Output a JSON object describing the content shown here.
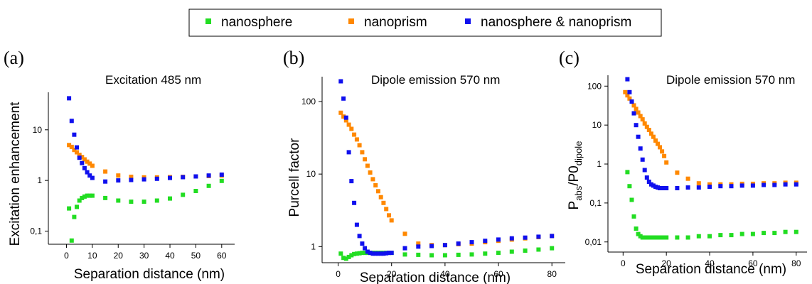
{
  "legend": {
    "entries": [
      {
        "label": "nanosphere",
        "color": "#22dd22"
      },
      {
        "label": "nanoprism",
        "color": "#ff8800"
      },
      {
        "label": "nanosphere & nanoprism",
        "color": "#1010ee"
      }
    ]
  },
  "chart_data": [
    {
      "type": "scatter",
      "panel_label": "(a)",
      "title": "Excitation 485 nm",
      "xlabel": "Separation distance (nm)",
      "ylabel": "Excitation enhancement",
      "y_scale": "log",
      "xlim": [
        -7,
        65
      ],
      "ylim": [
        0.055,
        55
      ],
      "xticks": [
        0,
        10,
        20,
        30,
        40,
        50,
        60
      ],
      "xtick_labels": [
        "0",
        "10",
        "20",
        "30",
        "40",
        "50",
        "60"
      ],
      "yticks": [
        0.1,
        1,
        10
      ],
      "ytick_labels": [
        "0,1",
        "1",
        "10"
      ],
      "grid": false,
      "series": [
        {
          "name": "nanosphere",
          "color": "#22dd22",
          "x": [
            1,
            2,
            3,
            4,
            5,
            6,
            7,
            8,
            9,
            10,
            15,
            20,
            25,
            30,
            35,
            40,
            45,
            50,
            55,
            60
          ],
          "y": [
            0.28,
            0.065,
            0.19,
            0.3,
            0.4,
            0.45,
            0.48,
            0.5,
            0.5,
            0.5,
            0.45,
            0.4,
            0.38,
            0.38,
            0.4,
            0.44,
            0.52,
            0.62,
            0.78,
            0.98
          ]
        },
        {
          "name": "nanoprism",
          "color": "#ff8800",
          "x": [
            1,
            2,
            3,
            4,
            5,
            6,
            7,
            8,
            9,
            10,
            15,
            20,
            25,
            30,
            35,
            40,
            45,
            50,
            55,
            60
          ],
          "y": [
            5,
            4.6,
            4,
            3.6,
            3.2,
            2.9,
            2.6,
            2.35,
            2.15,
            1.95,
            1.5,
            1.25,
            1.18,
            1.15,
            1.15,
            1.16,
            1.18,
            1.2,
            1.22,
            1.25
          ]
        },
        {
          "name": "nanosphere & nanoprism",
          "color": "#1010ee",
          "x": [
            1,
            2,
            3,
            4,
            5,
            6,
            7,
            8,
            9,
            10,
            15,
            20,
            25,
            30,
            35,
            40,
            45,
            50,
            55,
            60
          ],
          "y": [
            42,
            15,
            8,
            4.5,
            2.8,
            2.2,
            1.75,
            1.45,
            1.25,
            1.12,
            0.95,
            1.0,
            1.02,
            1.05,
            1.08,
            1.12,
            1.16,
            1.2,
            1.25,
            1.3
          ]
        }
      ]
    },
    {
      "type": "scatter",
      "panel_label": "(b)",
      "title": "Dipole emission 570 nm",
      "xlabel": "Separation distance (nm)",
      "ylabel": "Purcell factor",
      "y_scale": "log",
      "xlim": [
        -6,
        85
      ],
      "ylim": [
        0.6,
        220
      ],
      "xticks": [
        0,
        20,
        40,
        60,
        80
      ],
      "xtick_labels": [
        "0",
        "20",
        "40",
        "60",
        "80"
      ],
      "yticks": [
        1,
        10,
        100
      ],
      "ytick_labels": [
        "1",
        "10",
        "100"
      ],
      "grid": false,
      "series": [
        {
          "name": "nanosphere",
          "color": "#22dd22",
          "x": [
            1,
            2,
            3,
            4,
            5,
            6,
            7,
            8,
            9,
            10,
            11,
            12,
            13,
            14,
            15,
            16,
            17,
            18,
            19,
            20,
            25,
            30,
            35,
            40,
            45,
            50,
            55,
            60,
            65,
            70,
            75,
            80
          ],
          "y": [
            0.8,
            0.7,
            0.68,
            0.72,
            0.76,
            0.79,
            0.8,
            0.81,
            0.82,
            0.82,
            0.82,
            0.82,
            0.82,
            0.82,
            0.82,
            0.82,
            0.82,
            0.82,
            0.82,
            0.82,
            0.78,
            0.77,
            0.76,
            0.76,
            0.77,
            0.78,
            0.8,
            0.82,
            0.85,
            0.88,
            0.91,
            0.95
          ]
        },
        {
          "name": "nanoprism",
          "color": "#ff8800",
          "x": [
            1,
            2,
            3,
            4,
            5,
            6,
            7,
            8,
            9,
            10,
            11,
            12,
            13,
            14,
            15,
            16,
            17,
            18,
            19,
            20,
            25,
            30,
            35,
            40,
            45,
            50,
            55,
            60,
            65,
            70,
            75,
            80
          ],
          "y": [
            70,
            62,
            55,
            48,
            42,
            35,
            30,
            25,
            20,
            16,
            13,
            10.5,
            8.5,
            7,
            5.8,
            4.8,
            4,
            3.3,
            2.7,
            2.3,
            1.5,
            1.1,
            1.05,
            1.05,
            1.08,
            1.1,
            1.15,
            1.2,
            1.25,
            1.3,
            1.35,
            1.4
          ]
        },
        {
          "name": "nanosphere & nanoprism",
          "color": "#1010ee",
          "x": [
            1,
            2,
            3,
            4,
            5,
            6,
            7,
            8,
            9,
            10,
            11,
            12,
            13,
            14,
            15,
            16,
            17,
            18,
            19,
            20,
            25,
            30,
            35,
            40,
            45,
            50,
            55,
            60,
            65,
            70,
            75,
            80
          ],
          "y": [
            190,
            110,
            60,
            20,
            8,
            4,
            2,
            1.4,
            1.1,
            0.95,
            0.85,
            0.82,
            0.8,
            0.8,
            0.8,
            0.8,
            0.8,
            0.81,
            0.82,
            0.82,
            0.95,
            1.0,
            1.02,
            1.05,
            1.1,
            1.15,
            1.2,
            1.25,
            1.3,
            1.33,
            1.37,
            1.4
          ]
        }
      ]
    },
    {
      "type": "scatter",
      "panel_label": "(c)",
      "title": "Dipole emission 570 nm",
      "xlabel": "Separation distance (nm)",
      "ylabel_parts": {
        "p1": "P",
        "sub1": "abs",
        "p2": "/P0",
        "sub2": "dipole"
      },
      "y_scale": "log",
      "xlim": [
        -7,
        85
      ],
      "ylim": [
        0.0055,
        190
      ],
      "xticks": [
        0,
        20,
        40,
        60,
        80
      ],
      "xtick_labels": [
        "0",
        "20",
        "40",
        "60",
        "80"
      ],
      "yticks": [
        0.01,
        0.1,
        1,
        10,
        100
      ],
      "ytick_labels": [
        "0,01",
        "0,1",
        "1",
        "10",
        "100"
      ],
      "grid": false,
      "series": [
        {
          "name": "nanosphere",
          "color": "#22dd22",
          "x": [
            2,
            3,
            4,
            5,
            6,
            7,
            8,
            9,
            10,
            11,
            12,
            13,
            14,
            15,
            16,
            17,
            18,
            19,
            20,
            25,
            30,
            35,
            40,
            45,
            50,
            55,
            60,
            65,
            70,
            75,
            80
          ],
          "y": [
            0.62,
            0.27,
            0.12,
            0.045,
            0.022,
            0.016,
            0.014,
            0.013,
            0.013,
            0.013,
            0.013,
            0.013,
            0.013,
            0.013,
            0.013,
            0.013,
            0.013,
            0.013,
            0.013,
            0.013,
            0.013,
            0.014,
            0.014,
            0.015,
            0.015,
            0.016,
            0.016,
            0.017,
            0.017,
            0.018,
            0.018
          ]
        },
        {
          "name": "nanoprism",
          "color": "#ff8800",
          "x": [
            1,
            2,
            3,
            4,
            5,
            6,
            7,
            8,
            9,
            10,
            11,
            12,
            13,
            14,
            15,
            16,
            17,
            18,
            19,
            20,
            25,
            30,
            35,
            40,
            45,
            50,
            55,
            60,
            65,
            70,
            75,
            80
          ],
          "y": [
            70,
            58,
            48,
            40,
            32,
            26,
            21,
            17,
            14,
            11,
            9,
            7.5,
            6,
            5,
            4,
            3.3,
            2.7,
            2.1,
            1.6,
            1.1,
            0.6,
            0.42,
            0.32,
            0.3,
            0.3,
            0.3,
            0.31,
            0.31,
            0.32,
            0.32,
            0.33,
            0.33
          ]
        },
        {
          "name": "nanosphere & nanoprism",
          "color": "#1010ee",
          "x": [
            2,
            3,
            4,
            5,
            6,
            7,
            8,
            9,
            10,
            11,
            12,
            13,
            14,
            15,
            16,
            17,
            18,
            19,
            20,
            25,
            30,
            35,
            40,
            45,
            50,
            55,
            60,
            65,
            70,
            75,
            80
          ],
          "y": [
            150,
            70,
            40,
            20,
            10,
            5,
            2.5,
            1.3,
            0.7,
            0.45,
            0.35,
            0.3,
            0.28,
            0.26,
            0.25,
            0.24,
            0.24,
            0.24,
            0.24,
            0.24,
            0.25,
            0.25,
            0.26,
            0.27,
            0.27,
            0.28,
            0.28,
            0.29,
            0.29,
            0.3,
            0.3
          ]
        }
      ]
    }
  ]
}
